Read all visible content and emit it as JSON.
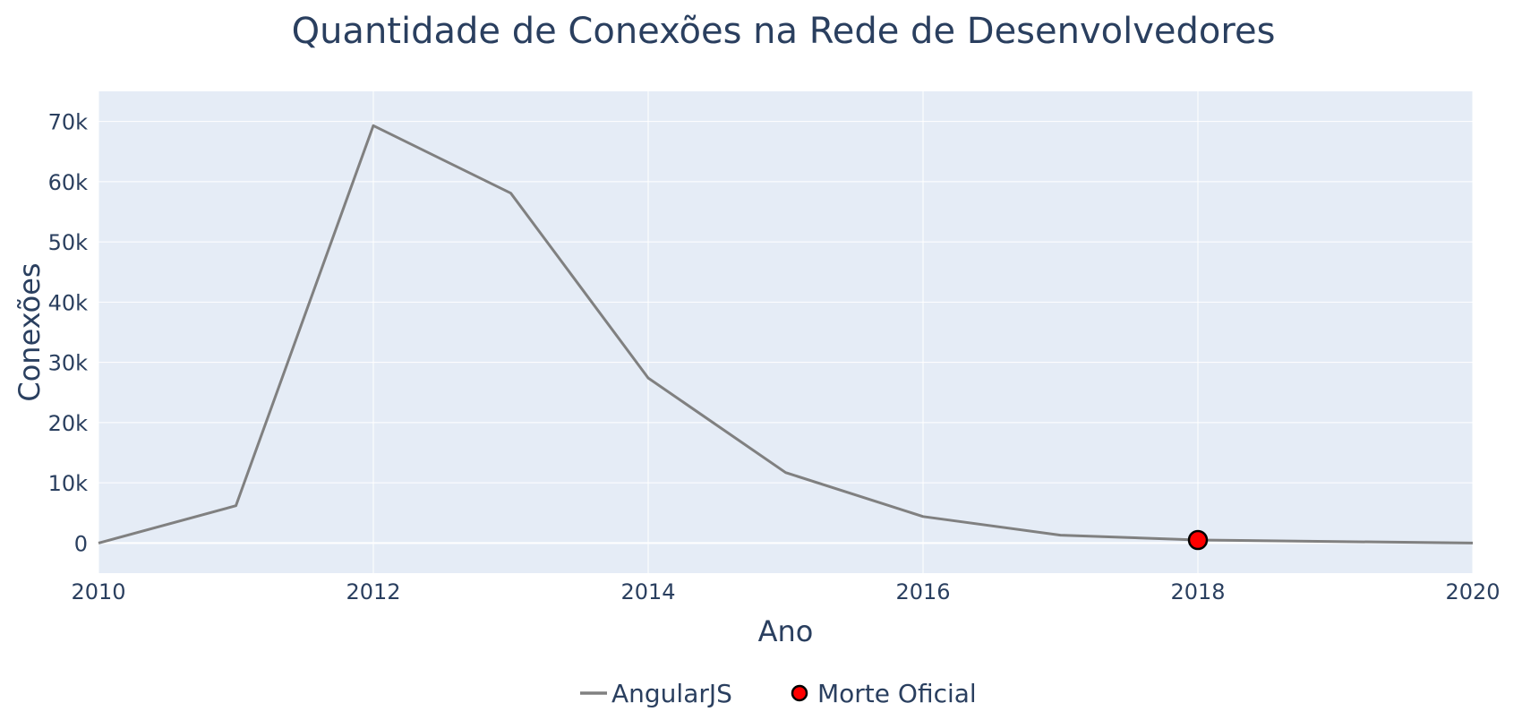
{
  "chart_data": {
    "type": "line",
    "title": "Quantidade de Conexões na Rede de Desenvolvedores",
    "xlabel": "Ano",
    "ylabel": "Conexões",
    "xlim": [
      2010,
      2020
    ],
    "ylim": [
      -5000,
      75000
    ],
    "x_ticks": [
      2010,
      2012,
      2014,
      2016,
      2018,
      2020
    ],
    "y_ticks": [
      0,
      10000,
      20000,
      30000,
      40000,
      50000,
      60000,
      70000
    ],
    "x_tick_labels": [
      "2010",
      "2012",
      "2014",
      "2016",
      "2018",
      "2020"
    ],
    "y_tick_labels": [
      "0",
      "10k",
      "20k",
      "30k",
      "40k",
      "50k",
      "60k",
      "70k"
    ],
    "grid": true,
    "legend_position": "bottom-center",
    "series": [
      {
        "name": "AngularJS",
        "type": "line",
        "color": "#808080",
        "x": [
          2010,
          2011,
          2012,
          2013,
          2014,
          2015,
          2016,
          2017,
          2018,
          2020
        ],
        "y": [
          0,
          6200,
          69300,
          58100,
          27400,
          11700,
          4400,
          1300,
          500,
          0
        ]
      },
      {
        "name": "Morte Oficial",
        "type": "marker",
        "color": "#ff0000",
        "x": [
          2018
        ],
        "y": [
          500
        ]
      }
    ]
  }
}
